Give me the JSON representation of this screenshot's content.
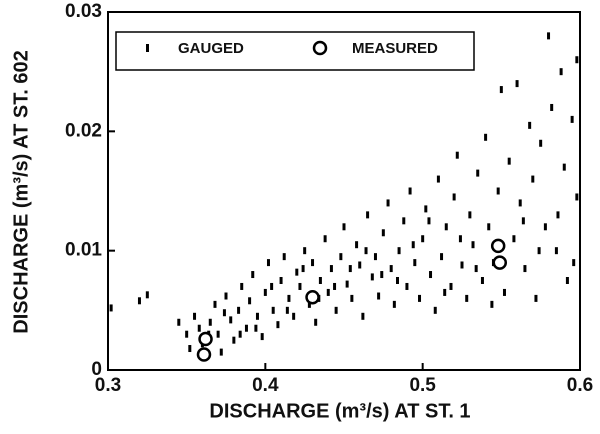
{
  "chart_data": {
    "type": "scatter",
    "x_label": "DISCHARGE (m³/s) AT ST. 1",
    "y_label": "DISCHARGE (m³/s) AT ST. 602",
    "xlim": [
      0.3,
      0.6
    ],
    "xticks": [
      0.3,
      0.4,
      0.5,
      0.6
    ],
    "ylim": [
      0,
      0.03
    ],
    "yticks": [
      0,
      0.01,
      0.02,
      0.03
    ],
    "series": [
      {
        "name": "GAUGED",
        "color": "#000000",
        "x": [
          0.302,
          0.32,
          0.325,
          0.345,
          0.35,
          0.352,
          0.355,
          0.358,
          0.36,
          0.365,
          0.368,
          0.37,
          0.372,
          0.375,
          0.378,
          0.38,
          0.383,
          0.385,
          0.388,
          0.39,
          0.392,
          0.395,
          0.398,
          0.4,
          0.402,
          0.405,
          0.408,
          0.41,
          0.412,
          0.415,
          0.418,
          0.42,
          0.422,
          0.425,
          0.428,
          0.43,
          0.432,
          0.435,
          0.438,
          0.44,
          0.442,
          0.445,
          0.448,
          0.45,
          0.452,
          0.455,
          0.458,
          0.46,
          0.462,
          0.465,
          0.468,
          0.47,
          0.472,
          0.475,
          0.478,
          0.48,
          0.482,
          0.485,
          0.488,
          0.49,
          0.492,
          0.495,
          0.498,
          0.5,
          0.502,
          0.505,
          0.508,
          0.51,
          0.512,
          0.515,
          0.518,
          0.52,
          0.522,
          0.525,
          0.528,
          0.53,
          0.532,
          0.535,
          0.538,
          0.54,
          0.542,
          0.545,
          0.548,
          0.55,
          0.552,
          0.555,
          0.558,
          0.56,
          0.562,
          0.565,
          0.568,
          0.57,
          0.572,
          0.575,
          0.578,
          0.58,
          0.582,
          0.585,
          0.588,
          0.59,
          0.592,
          0.595,
          0.598,
          0.598,
          0.596,
          0.586,
          0.574,
          0.564,
          0.544,
          0.534,
          0.524,
          0.514,
          0.504,
          0.494,
          0.484,
          0.474,
          0.464,
          0.454,
          0.444,
          0.434,
          0.424,
          0.414,
          0.404,
          0.394,
          0.384,
          0.374,
          0.364
        ],
        "values": [
          0.0052,
          0.0058,
          0.0063,
          0.004,
          0.003,
          0.0018,
          0.0045,
          0.0035,
          0.0022,
          0.004,
          0.0055,
          0.003,
          0.0015,
          0.0062,
          0.0042,
          0.0025,
          0.005,
          0.007,
          0.0035,
          0.0058,
          0.008,
          0.0045,
          0.0028,
          0.0065,
          0.009,
          0.005,
          0.0038,
          0.0075,
          0.0095,
          0.006,
          0.0045,
          0.0082,
          0.007,
          0.01,
          0.0055,
          0.009,
          0.004,
          0.0075,
          0.011,
          0.0065,
          0.0085,
          0.005,
          0.0095,
          0.012,
          0.0072,
          0.006,
          0.0105,
          0.0088,
          0.0045,
          0.013,
          0.0078,
          0.0095,
          0.0062,
          0.0115,
          0.014,
          0.0085,
          0.0055,
          0.01,
          0.0125,
          0.007,
          0.015,
          0.009,
          0.006,
          0.011,
          0.0135,
          0.008,
          0.005,
          0.016,
          0.0095,
          0.012,
          0.007,
          0.0145,
          0.018,
          0.0088,
          0.006,
          0.013,
          0.0105,
          0.0165,
          0.0075,
          0.0195,
          0.012,
          0.009,
          0.015,
          0.0235,
          0.0065,
          0.0175,
          0.011,
          0.024,
          0.014,
          0.0085,
          0.0205,
          0.016,
          0.006,
          0.019,
          0.012,
          0.028,
          0.022,
          0.01,
          0.025,
          0.017,
          0.0075,
          0.021,
          0.0145,
          0.026,
          0.009,
          0.013,
          0.01,
          0.0125,
          0.0055,
          0.0085,
          0.011,
          0.0065,
          0.0125,
          0.0105,
          0.0075,
          0.008,
          0.01,
          0.0085,
          0.007,
          0.006,
          0.0085,
          0.005,
          0.007,
          0.0035,
          0.003,
          0.0048,
          0.003
        ]
      },
      {
        "name": "MEASURED",
        "color": "#000000",
        "x": [
          0.362,
          0.361,
          0.43,
          0.548,
          0.549
        ],
        "values": [
          0.0026,
          0.0013,
          0.0061,
          0.0104,
          0.009
        ]
      }
    ]
  }
}
